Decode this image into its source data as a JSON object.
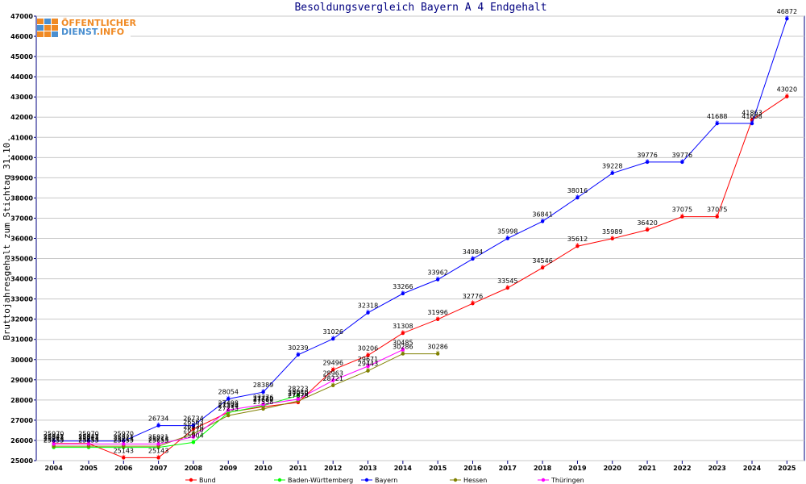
{
  "logo": {
    "line1": "ÖFFENTLICHER",
    "line2a": "DIENST",
    "line2b": ".INFO"
  },
  "chart_data": {
    "type": "line",
    "title": "Besoldungsvergleich Bayern A 4 Endgehalt",
    "xlabel": "",
    "ylabel": "Bruttojahresgehalt zum Stichtag 31.10.",
    "ylim": [
      25000,
      47000
    ],
    "yticks": [
      25000,
      26000,
      27000,
      28000,
      29000,
      30000,
      31000,
      32000,
      33000,
      34000,
      35000,
      36000,
      37000,
      38000,
      39000,
      40000,
      41000,
      42000,
      43000,
      44000,
      45000,
      46000,
      47000
    ],
    "categories": [
      "2004",
      "2005",
      "2006",
      "2007",
      "2008",
      "2009",
      "2010",
      "2011",
      "2012",
      "2013",
      "2014",
      "2015",
      "2016",
      "2017",
      "2018",
      "2019",
      "2020",
      "2021",
      "2022",
      "2023",
      "2024",
      "2025"
    ],
    "series": [
      {
        "name": "Bund",
        "color": "#ff0000",
        "values": [
          25842,
          25842,
          25143,
          25143,
          26563,
          27393,
          27667,
          27878,
          29496,
          30206,
          31308,
          31996,
          32776,
          33545,
          34546,
          35612,
          35989,
          36420,
          37075,
          37075,
          41863,
          43020
        ]
      },
      {
        "name": "Baden-Württemberg",
        "color": "#00ff00",
        "values": [
          25655,
          25655,
          25655,
          25655,
          25904,
          27374,
          27720,
          28223,
          null,
          null,
          null,
          null,
          null,
          null,
          null,
          null,
          null,
          null,
          null,
          null,
          null,
          null
        ]
      },
      {
        "name": "Bayern",
        "color": "#0000ff",
        "values": [
          25970,
          25970,
          25970,
          26734,
          26734,
          28054,
          28389,
          30239,
          31026,
          32318,
          33266,
          33962,
          34984,
          35998,
          36841,
          38016,
          39228,
          39776,
          39776,
          41688,
          41688,
          46872
        ]
      },
      {
        "name": "Hessen",
        "color": "#808000",
        "values": [
          25713,
          25713,
          25713,
          25713,
          26330,
          27233,
          27558,
          27950,
          28721,
          29443,
          30286,
          30286,
          null,
          null,
          null,
          null,
          null,
          null,
          null,
          null,
          null,
          null
        ]
      },
      {
        "name": "Thüringen",
        "color": "#ff00ff",
        "values": [
          25821,
          25821,
          25821,
          25821,
          26170,
          27498,
          27776,
          28040,
          28963,
          29671,
          30485,
          null,
          null,
          null,
          null,
          null,
          null,
          null,
          null,
          null,
          null,
          null
        ]
      }
    ],
    "legend_position": "bottom"
  }
}
